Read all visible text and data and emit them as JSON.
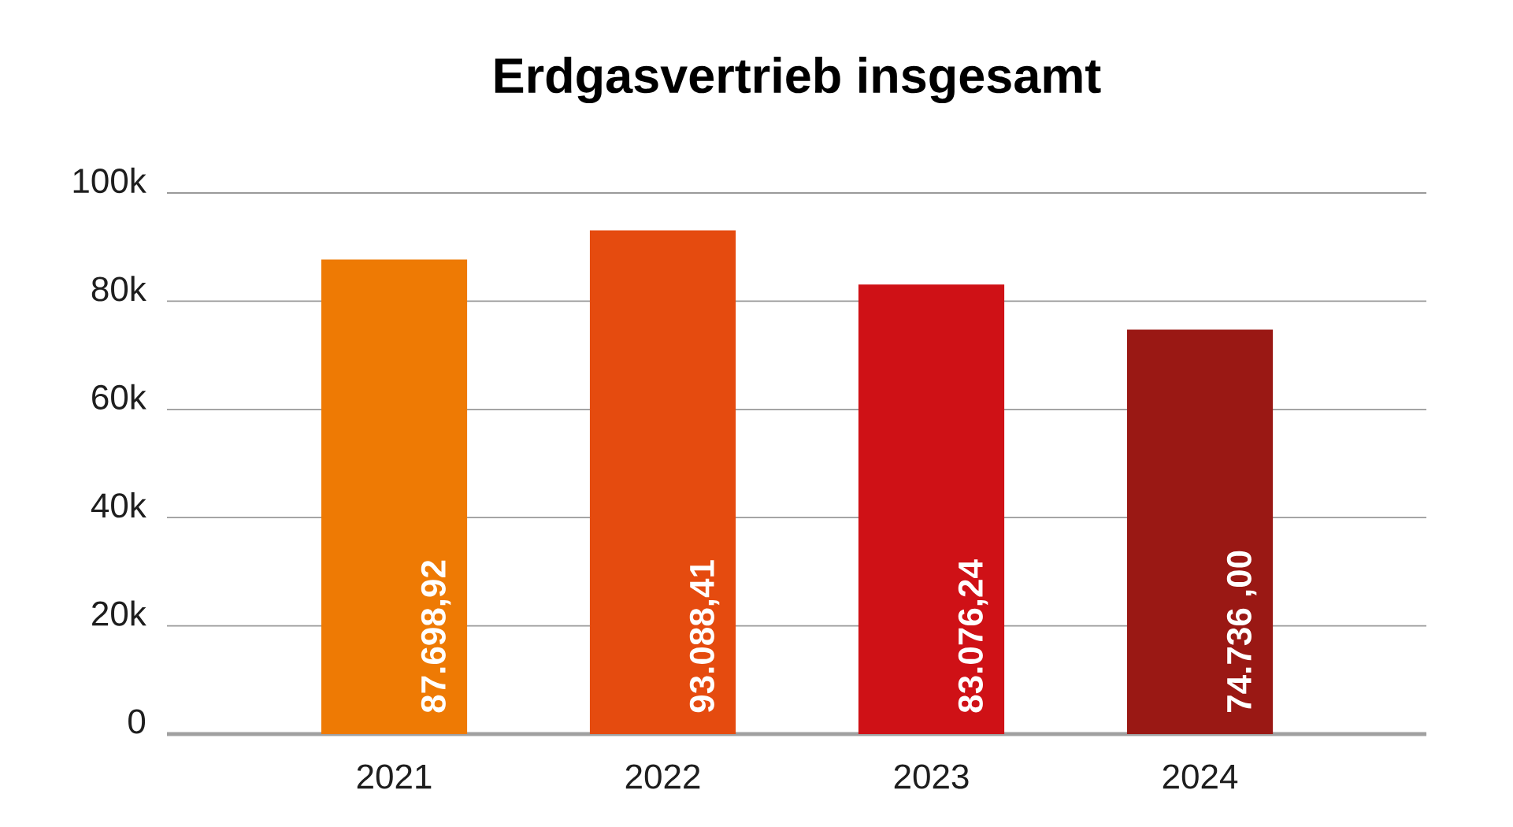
{
  "chart_data": {
    "type": "bar",
    "title": "Erdgasvertrieb insgesamt",
    "categories": [
      "2021",
      "2022",
      "2023",
      "2024"
    ],
    "values": [
      87698.92,
      93088.41,
      83076.24,
      74736.0
    ],
    "colors": [
      "#ee7a04",
      "#e54b0f",
      "#cf1116",
      "#9a1814"
    ],
    "value_labels": [
      "87.698,92",
      "93.088,41",
      "83.076,24",
      "74.736 ,00"
    ],
    "ylim": [
      0,
      100000
    ],
    "yticks": [
      {
        "value": 0,
        "label": "0"
      },
      {
        "value": 20000,
        "label": "20k"
      },
      {
        "value": 40000,
        "label": "40k"
      },
      {
        "value": 60000,
        "label": "60k"
      },
      {
        "value": 80000,
        "label": "80k"
      },
      {
        "value": 100000,
        "label": "100k"
      }
    ],
    "grid": "y"
  }
}
